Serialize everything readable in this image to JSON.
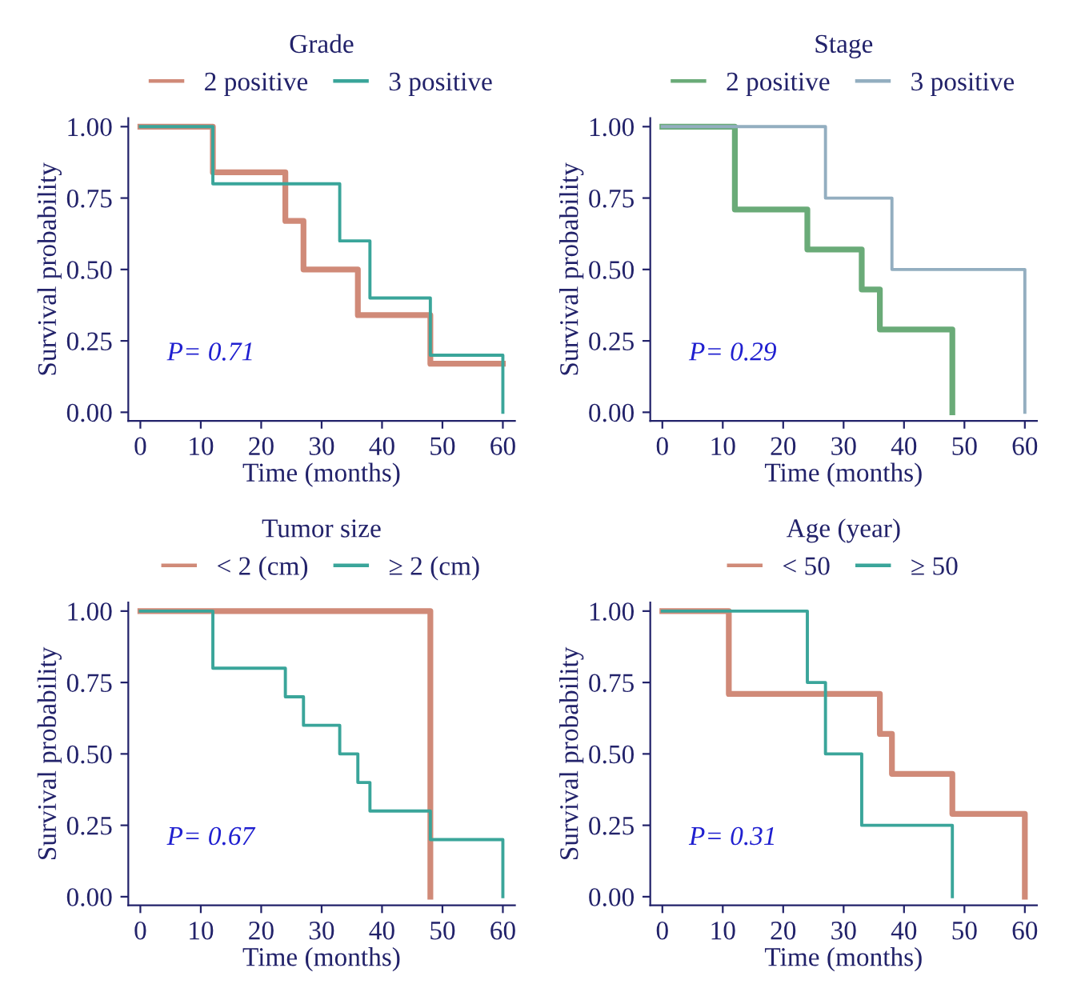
{
  "chart_data": [
    {
      "type": "step",
      "legend_title": "Grade",
      "xlabel": "Time (months)",
      "ylabel": "Survival probability",
      "legend": "top",
      "annotations": [
        "P= 0.71"
      ],
      "series": [
        {
          "name": "2 positive",
          "color": "#d08a78",
          "x": [
            0,
            12,
            24,
            27,
            36,
            48,
            60
          ],
          "values": [
            1,
            0.84,
            0.67,
            0.5,
            0.34,
            0.17,
            0.17
          ]
        },
        {
          "name": "3 positive",
          "color": "#3aa59a",
          "x": [
            0,
            12,
            33,
            38,
            48,
            60
          ],
          "values": [
            1,
            0.8,
            0.6,
            0.4,
            0.2,
            0
          ]
        }
      ],
      "xlim": [
        -2,
        62
      ],
      "xticks": [
        0,
        10,
        20,
        30,
        40,
        50,
        60
      ],
      "ylim": [
        -0.03,
        1.03
      ],
      "yticks": [
        {
          "value": 0,
          "label": "0.00"
        },
        {
          "value": 0.25,
          "label": "0.25"
        },
        {
          "value": 0.5,
          "label": "0.50"
        },
        {
          "value": 0.75,
          "label": "0.75"
        },
        {
          "value": 1,
          "label": "1.00"
        }
      ]
    },
    {
      "type": "step",
      "legend_title": "Stage",
      "xlabel": "Time (months)",
      "ylabel": "Survival probability",
      "legend": "top",
      "annotations": [
        "P= 0.29"
      ],
      "series": [
        {
          "name": "2 positive",
          "color": "#6aab78",
          "x": [
            0,
            12,
            24,
            33,
            36,
            48
          ],
          "values": [
            1,
            0.71,
            0.57,
            0.43,
            0.29,
            0
          ]
        },
        {
          "name": "3 positive",
          "color": "#93aec0",
          "x": [
            0,
            27,
            38,
            60
          ],
          "values": [
            1,
            0.75,
            0.5,
            0
          ]
        }
      ],
      "xlim": [
        -2,
        62
      ],
      "xticks": [
        0,
        10,
        20,
        30,
        40,
        50,
        60
      ],
      "ylim": [
        -0.03,
        1.03
      ],
      "yticks": [
        {
          "value": 0,
          "label": "0.00"
        },
        {
          "value": 0.25,
          "label": "0.25"
        },
        {
          "value": 0.5,
          "label": "0.50"
        },
        {
          "value": 0.75,
          "label": "0.75"
        },
        {
          "value": 1,
          "label": "1.00"
        }
      ]
    },
    {
      "type": "step",
      "legend_title": "Tumor size",
      "xlabel": "Time (months)",
      "ylabel": "Survival probability",
      "legend": "top",
      "annotations": [
        "P= 0.67"
      ],
      "series": [
        {
          "name": "< 2 (cm)",
          "color": "#d08a78",
          "x": [
            0,
            48
          ],
          "values": [
            1,
            0
          ]
        },
        {
          "name": "≥ 2 (cm)",
          "color": "#3aa59a",
          "x": [
            0,
            12,
            24,
            27,
            33,
            36,
            38,
            48,
            60
          ],
          "values": [
            1,
            0.8,
            0.7,
            0.6,
            0.5,
            0.4,
            0.3,
            0.2,
            0
          ]
        }
      ],
      "xlim": [
        -2,
        62
      ],
      "xticks": [
        0,
        10,
        20,
        30,
        40,
        50,
        60
      ],
      "ylim": [
        -0.03,
        1.03
      ],
      "yticks": [
        {
          "value": 0,
          "label": "0.00"
        },
        {
          "value": 0.25,
          "label": "0.25"
        },
        {
          "value": 0.5,
          "label": "0.50"
        },
        {
          "value": 0.75,
          "label": "0.75"
        },
        {
          "value": 1,
          "label": "1.00"
        }
      ]
    },
    {
      "type": "step",
      "legend_title": "Age (year)",
      "xlabel": "Time (months)",
      "ylabel": "Survival probability",
      "legend": "top",
      "annotations": [
        "P= 0.31"
      ],
      "series": [
        {
          "name": "< 50",
          "color": "#d08a78",
          "x": [
            0,
            11,
            36,
            38,
            48,
            60
          ],
          "values": [
            1,
            0.71,
            0.57,
            0.43,
            0.29,
            0
          ]
        },
        {
          "name": "≥ 50",
          "color": "#3aa59a",
          "x": [
            0,
            24,
            27,
            33,
            48
          ],
          "values": [
            1,
            0.75,
            0.5,
            0.25,
            0
          ]
        }
      ],
      "xlim": [
        -2,
        62
      ],
      "xticks": [
        0,
        10,
        20,
        30,
        40,
        50,
        60
      ],
      "ylim": [
        -0.03,
        1.03
      ],
      "yticks": [
        {
          "value": 0,
          "label": "0.00"
        },
        {
          "value": 0.25,
          "label": "0.25"
        },
        {
          "value": 0.5,
          "label": "0.50"
        },
        {
          "value": 0.75,
          "label": "0.75"
        },
        {
          "value": 1,
          "label": "1.00"
        }
      ]
    }
  ]
}
